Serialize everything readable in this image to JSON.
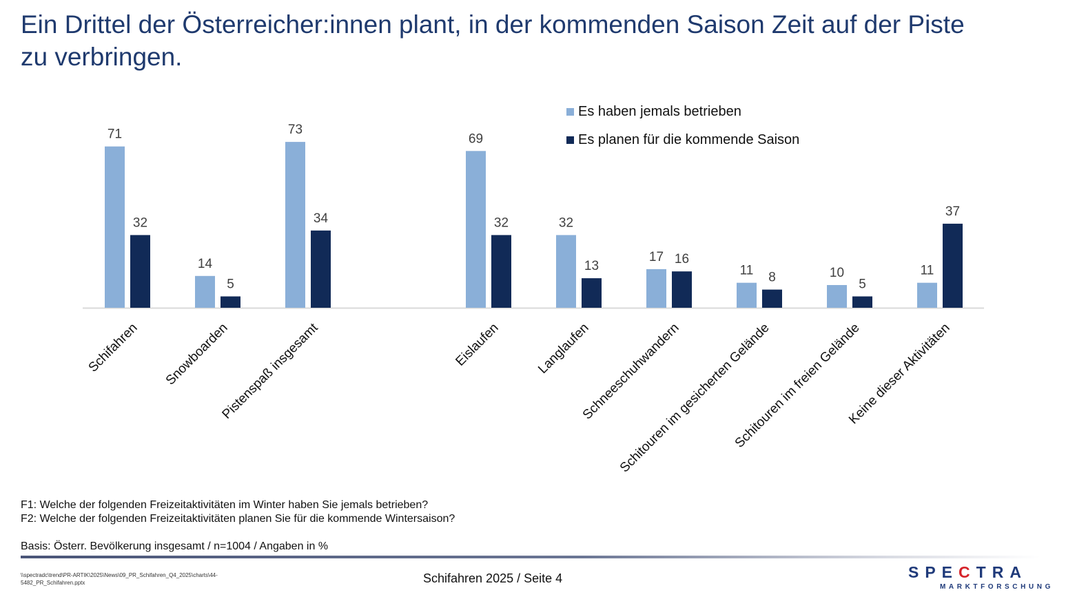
{
  "page": {
    "title": "Ein Drittel der Österreicher:innen plant, in der kommenden Saison Zeit auf der Piste zu verbringen.",
    "notes": {
      "f1": "F1: Welche der folgenden Freizeitaktivitäten im Winter haben Sie jemals betrieben?",
      "f2": "F2: Welche der folgenden Freizeitaktivitäten planen Sie für die kommende Wintersaison?",
      "basis": "Basis: Österr. Bevölkerung insgesamt / n=1004 / Angaben in %"
    },
    "footer": {
      "filepath_line1": "\\\\spectradc\\trend\\PR-ARTIK\\2025\\News\\09_PR_Schifahren_Q4_2025\\charts\\44-",
      "filepath_line2": "5482_PR_Schifahren.pptx",
      "page_info": "Schifahren 2025  /  Seite 4"
    },
    "logo": {
      "name_part1": "SPE",
      "name_c": "C",
      "name_part2": "TRA",
      "subtitle": "MARKTFORSCHUNG"
    }
  },
  "colors": {
    "series1": "#8aafd8",
    "series2": "#112a57",
    "title": "#1f3a6e",
    "axis": "#d9d9d9",
    "label": "#404040"
  },
  "chart_data": {
    "type": "bar",
    "title": "",
    "xlabel": "",
    "ylabel": "",
    "ylim": [
      0,
      80
    ],
    "grid": false,
    "legend_position": "top-right",
    "categories": [
      "Schifahren",
      "Snowboarden",
      "Pistenspaß insgesamt",
      "Eislaufen",
      "Langlaufen",
      "Schneeschuhwandern",
      "Schitouren im gesicherten Gelände",
      "Schitouren im freien Gelände",
      "Keine dieser Aktivitäten"
    ],
    "group_gap_after_index": 2,
    "series": [
      {
        "name": "Es haben jemals betrieben",
        "values": [
          71,
          14,
          73,
          69,
          32,
          17,
          11,
          10,
          11
        ]
      },
      {
        "name": "Es planen für die kommende Saison",
        "values": [
          32,
          5,
          34,
          32,
          13,
          16,
          8,
          5,
          37
        ]
      }
    ]
  }
}
